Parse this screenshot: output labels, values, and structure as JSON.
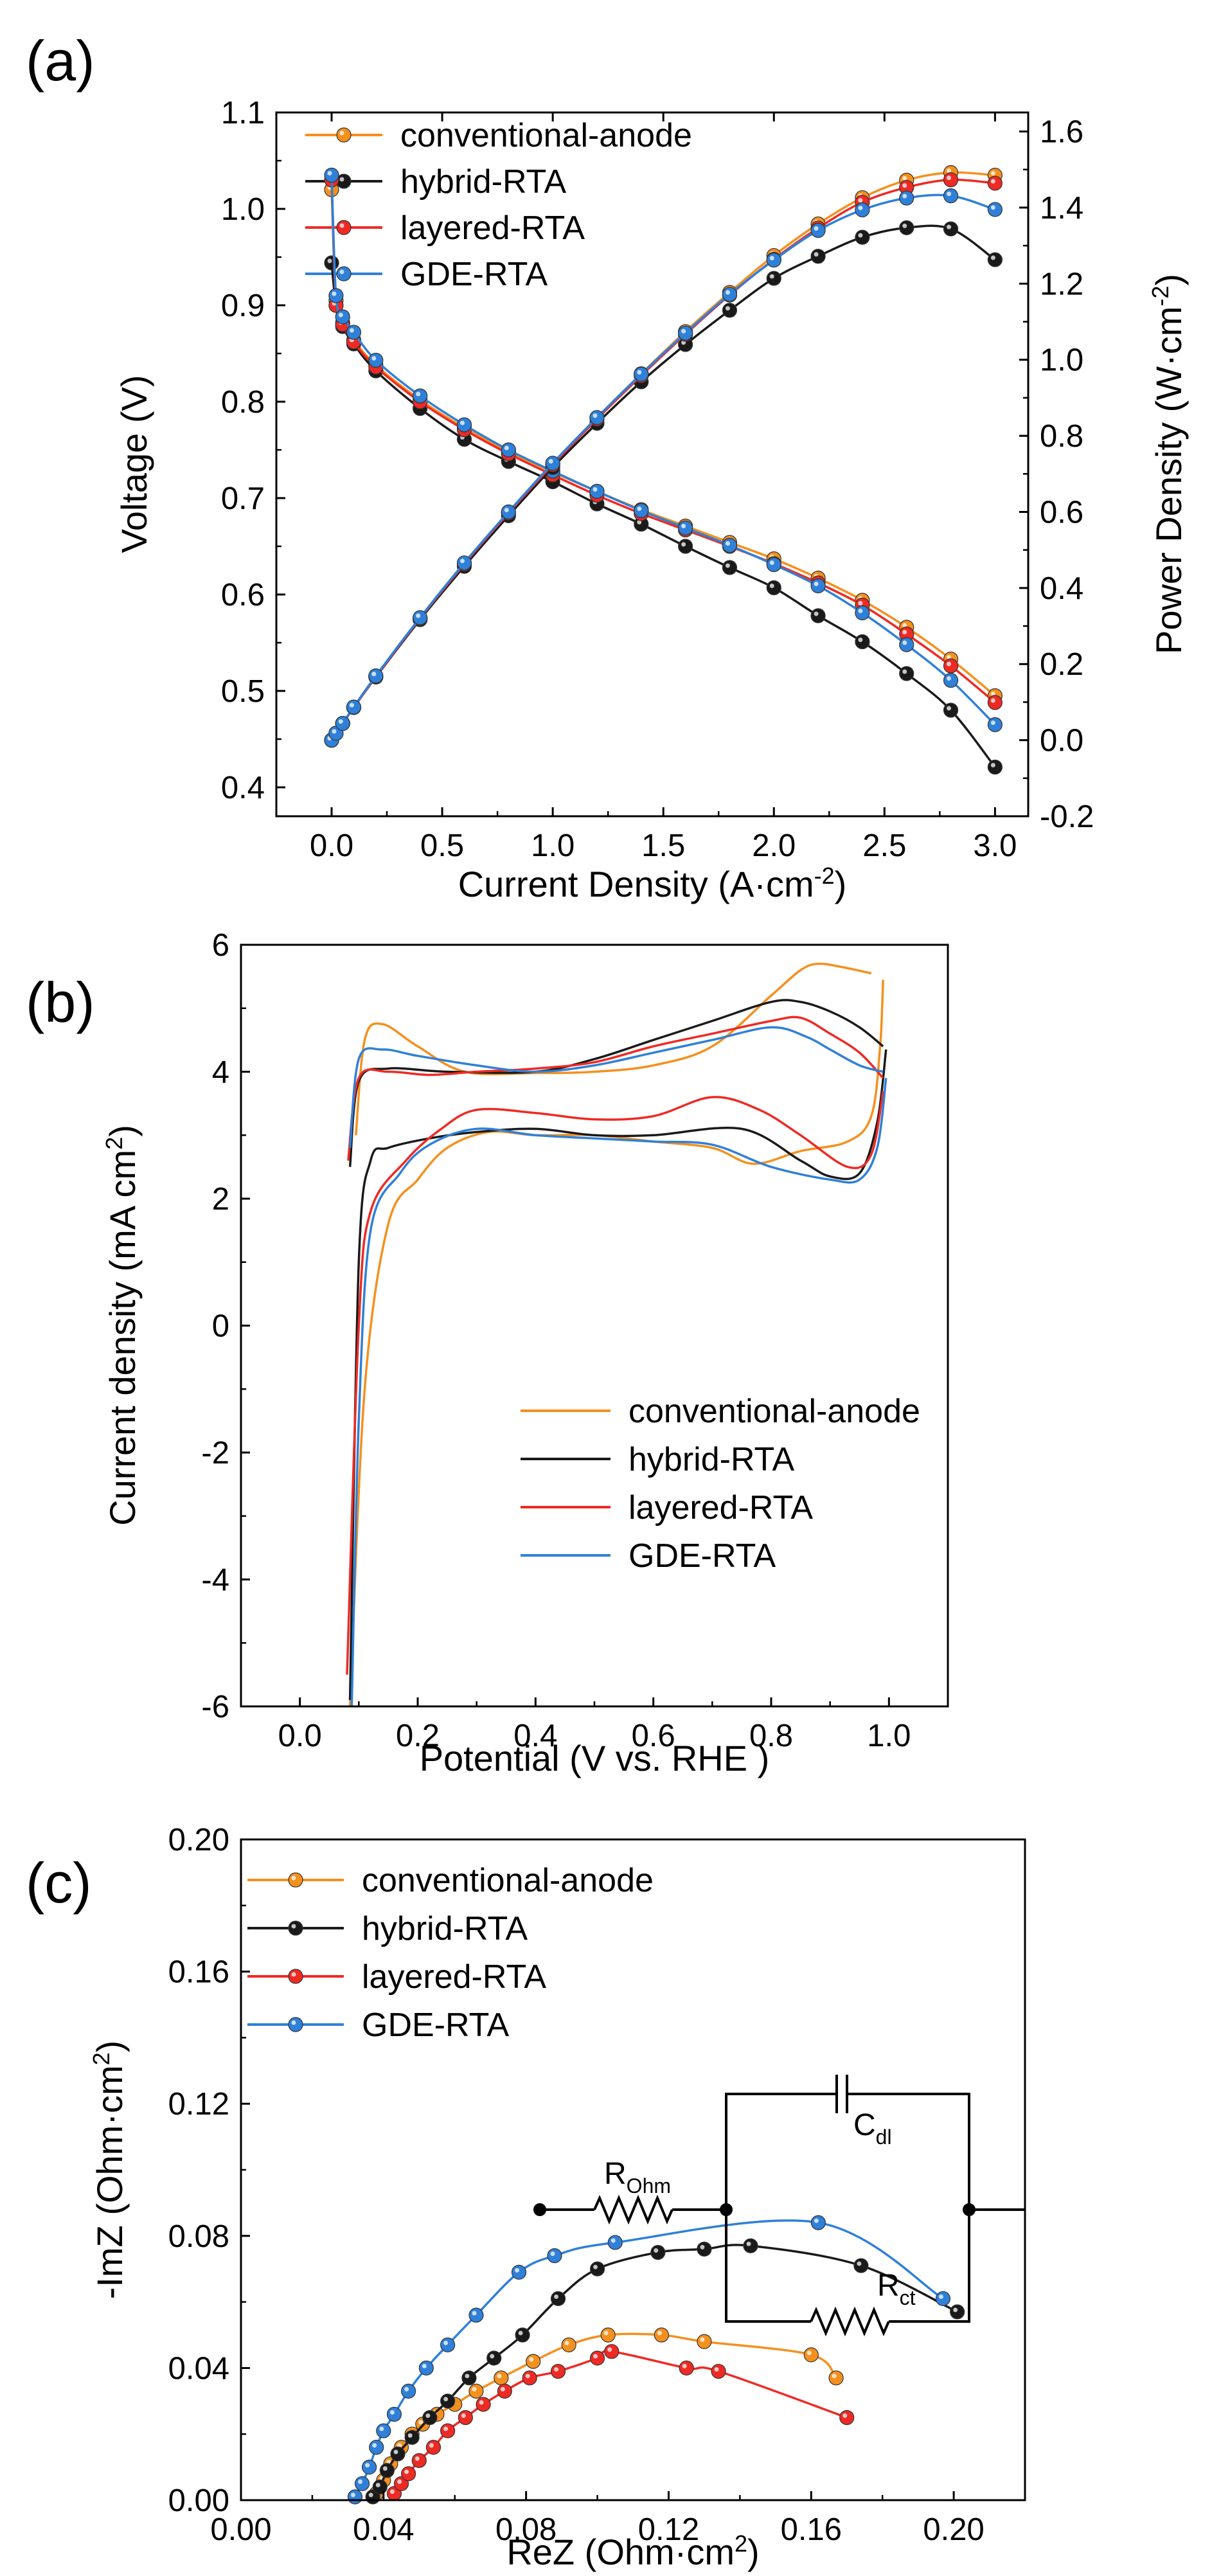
{
  "colors": {
    "conventional": "#f4901e",
    "hybrid": "#1a1a1a",
    "layered": "#ee2a24",
    "gde": "#2f80d8"
  },
  "chart_data": [
    {
      "panel": "(a)",
      "type": "line",
      "xlabel": "Current Density (A·cm⁻²)",
      "ylabel": "Voltage (V)",
      "y2label": "Power Density (W·cm⁻²)",
      "xlim": [
        -0.25,
        3.15
      ],
      "ylim": [
        0.37,
        1.1
      ],
      "y2lim": [
        -0.2,
        1.65
      ],
      "xticks": [
        "0.0",
        "0.5",
        "1.0",
        "1.5",
        "2.0",
        "2.5",
        "3.0"
      ],
      "yticks": [
        "0.4",
        "0.5",
        "0.6",
        "0.7",
        "0.8",
        "0.9",
        "1.0",
        "1.1"
      ],
      "y2ticks": [
        "-0.2",
        "0.0",
        "0.2",
        "0.4",
        "0.6",
        "0.8",
        "1.0",
        "1.2",
        "1.4",
        "1.6"
      ],
      "legend_position": "top-left",
      "x": [
        0,
        0.02,
        0.05,
        0.1,
        0.2,
        0.4,
        0.6,
        0.8,
        1.0,
        1.2,
        1.4,
        1.6,
        1.8,
        2.0,
        2.2,
        2.4,
        2.6,
        2.8,
        3.0
      ],
      "voltage_series": [
        {
          "name": "conventional-anode",
          "values": [
            1.02,
            0.905,
            0.882,
            0.864,
            0.838,
            0.802,
            0.773,
            0.748,
            0.727,
            0.707,
            0.688,
            0.671,
            0.654,
            0.637,
            0.617,
            0.594,
            0.566,
            0.533,
            0.495
          ]
        },
        {
          "name": "hybrid-RTA",
          "values": [
            0.944,
            0.9,
            0.878,
            0.86,
            0.832,
            0.793,
            0.761,
            0.738,
            0.717,
            0.694,
            0.673,
            0.65,
            0.628,
            0.607,
            0.578,
            0.551,
            0.518,
            0.48,
            0.421
          ]
        },
        {
          "name": "layered-RTA",
          "values": [
            1.03,
            0.9,
            0.88,
            0.862,
            0.836,
            0.8,
            0.771,
            0.746,
            0.724,
            0.703,
            0.684,
            0.667,
            0.65,
            0.632,
            0.612,
            0.589,
            0.559,
            0.526,
            0.488
          ]
        },
        {
          "name": "GDE-RTA",
          "values": [
            1.035,
            0.91,
            0.888,
            0.872,
            0.843,
            0.806,
            0.776,
            0.75,
            0.728,
            0.707,
            0.687,
            0.669,
            0.651,
            0.631,
            0.609,
            0.581,
            0.548,
            0.511,
            0.465
          ]
        }
      ],
      "power_series": [
        {
          "name": "conventional-anode",
          "values": [
            0,
            0.018,
            0.044,
            0.086,
            0.168,
            0.321,
            0.464,
            0.598,
            0.727,
            0.848,
            0.963,
            1.074,
            1.177,
            1.274,
            1.357,
            1.426,
            1.472,
            1.492,
            1.485
          ]
        },
        {
          "name": "hybrid-RTA",
          "values": [
            0,
            0.018,
            0.044,
            0.086,
            0.166,
            0.317,
            0.457,
            0.59,
            0.717,
            0.833,
            0.942,
            1.04,
            1.13,
            1.214,
            1.272,
            1.322,
            1.347,
            1.344,
            1.263
          ]
        },
        {
          "name": "layered-RTA",
          "values": [
            0,
            0.018,
            0.044,
            0.086,
            0.167,
            0.32,
            0.463,
            0.597,
            0.724,
            0.844,
            0.958,
            1.067,
            1.17,
            1.264,
            1.346,
            1.414,
            1.453,
            1.473,
            1.464
          ]
        },
        {
          "name": "GDE-RTA",
          "values": [
            0,
            0.018,
            0.044,
            0.087,
            0.169,
            0.322,
            0.466,
            0.6,
            0.728,
            0.848,
            0.962,
            1.07,
            1.172,
            1.262,
            1.34,
            1.394,
            1.425,
            1.431,
            1.395
          ]
        }
      ]
    },
    {
      "panel": "(b)",
      "type": "line",
      "xlabel": "Potential (V vs. RHE )",
      "ylabel": "Current density (mA cm²)",
      "xlim": [
        -0.1,
        1.1
      ],
      "ylim": [
        -6,
        6
      ],
      "xticks": [
        "0.0",
        "0.2",
        "0.4",
        "0.6",
        "0.8",
        "1.0"
      ],
      "yticks": [
        "-6",
        "-4",
        "-2",
        "0",
        "2",
        "4",
        "6"
      ],
      "legend_position": "bottom-right",
      "series": [
        {
          "name": "conventional-anode",
          "upper": [
            [
              0.095,
              3.0
            ],
            [
              0.11,
              4.5
            ],
            [
              0.14,
              4.75
            ],
            [
              0.2,
              4.4
            ],
            [
              0.28,
              4.0
            ],
            [
              0.4,
              3.98
            ],
            [
              0.5,
              4.0
            ],
            [
              0.6,
              4.1
            ],
            [
              0.7,
              4.4
            ],
            [
              0.8,
              5.2
            ],
            [
              0.85,
              5.6
            ],
            [
              0.88,
              5.7
            ],
            [
              0.92,
              5.65
            ],
            [
              0.97,
              5.55
            ]
          ],
          "lower": [
            [
              0.99,
              5.45
            ],
            [
              0.985,
              4.4
            ],
            [
              0.97,
              3.3
            ],
            [
              0.93,
              2.9
            ],
            [
              0.85,
              2.75
            ],
            [
              0.77,
              2.55
            ],
            [
              0.7,
              2.8
            ],
            [
              0.6,
              2.9
            ],
            [
              0.5,
              3.0
            ],
            [
              0.4,
              3.0
            ],
            [
              0.32,
              3.05
            ],
            [
              0.25,
              2.8
            ],
            [
              0.2,
              2.3
            ],
            [
              0.15,
              1.6
            ],
            [
              0.11,
              -1.0
            ],
            [
              0.085,
              -6.0
            ]
          ]
        },
        {
          "name": "hybrid-RTA",
          "upper": [
            [
              0.085,
              2.5
            ],
            [
              0.1,
              3.85
            ],
            [
              0.15,
              4.05
            ],
            [
              0.25,
              4.0
            ],
            [
              0.4,
              4.0
            ],
            [
              0.5,
              4.2
            ],
            [
              0.6,
              4.5
            ],
            [
              0.7,
              4.8
            ],
            [
              0.8,
              5.1
            ],
            [
              0.85,
              5.1
            ],
            [
              0.9,
              4.95
            ],
            [
              0.95,
              4.7
            ],
            [
              0.99,
              4.4
            ]
          ],
          "lower": [
            [
              0.995,
              4.35
            ],
            [
              0.98,
              3.2
            ],
            [
              0.95,
              2.4
            ],
            [
              0.9,
              2.35
            ],
            [
              0.85,
              2.6
            ],
            [
              0.75,
              3.1
            ],
            [
              0.6,
              3.0
            ],
            [
              0.5,
              3.0
            ],
            [
              0.4,
              3.1
            ],
            [
              0.3,
              3.05
            ],
            [
              0.22,
              2.95
            ],
            [
              0.15,
              2.8
            ],
            [
              0.12,
              2.6
            ],
            [
              0.1,
              1.0
            ],
            [
              0.085,
              -5.9
            ]
          ]
        },
        {
          "name": "layered-RTA",
          "upper": [
            [
              0.082,
              2.6
            ],
            [
              0.1,
              3.9
            ],
            [
              0.15,
              4.0
            ],
            [
              0.22,
              3.95
            ],
            [
              0.3,
              4.0
            ],
            [
              0.4,
              4.05
            ],
            [
              0.5,
              4.15
            ],
            [
              0.6,
              4.4
            ],
            [
              0.7,
              4.6
            ],
            [
              0.8,
              4.8
            ],
            [
              0.85,
              4.85
            ],
            [
              0.9,
              4.6
            ],
            [
              0.95,
              4.3
            ],
            [
              0.99,
              3.9
            ]
          ],
          "lower": [
            [
              0.99,
              3.7
            ],
            [
              0.97,
              2.7
            ],
            [
              0.93,
              2.5
            ],
            [
              0.85,
              3.0
            ],
            [
              0.78,
              3.4
            ],
            [
              0.7,
              3.6
            ],
            [
              0.6,
              3.3
            ],
            [
              0.5,
              3.25
            ],
            [
              0.4,
              3.35
            ],
            [
              0.3,
              3.4
            ],
            [
              0.24,
              3.1
            ],
            [
              0.18,
              2.6
            ],
            [
              0.12,
              1.8
            ],
            [
              0.1,
              0.0
            ],
            [
              0.08,
              -5.5
            ]
          ]
        },
        {
          "name": "GDE-RTA",
          "upper": [
            [
              0.085,
              2.8
            ],
            [
              0.1,
              4.2
            ],
            [
              0.14,
              4.35
            ],
            [
              0.2,
              4.25
            ],
            [
              0.3,
              4.1
            ],
            [
              0.4,
              4.0
            ],
            [
              0.5,
              4.1
            ],
            [
              0.6,
              4.3
            ],
            [
              0.7,
              4.5
            ],
            [
              0.8,
              4.7
            ],
            [
              0.86,
              4.55
            ],
            [
              0.9,
              4.35
            ],
            [
              0.95,
              4.1
            ],
            [
              0.99,
              4.0
            ]
          ],
          "lower": [
            [
              0.995,
              3.9
            ],
            [
              0.98,
              2.8
            ],
            [
              0.95,
              2.3
            ],
            [
              0.9,
              2.3
            ],
            [
              0.8,
              2.5
            ],
            [
              0.7,
              2.85
            ],
            [
              0.6,
              2.9
            ],
            [
              0.5,
              2.95
            ],
            [
              0.4,
              3.0
            ],
            [
              0.3,
              3.1
            ],
            [
              0.22,
              2.85
            ],
            [
              0.17,
              2.4
            ],
            [
              0.12,
              1.5
            ],
            [
              0.1,
              -1.5
            ],
            [
              0.088,
              -6.0
            ]
          ]
        }
      ]
    },
    {
      "panel": "(c)",
      "type": "scatter",
      "xlabel": "ReZ  (Ohm·cm²)",
      "ylabel": "-ImZ  (Ohm·cm²)",
      "xlim": [
        0,
        0.22
      ],
      "ylim": [
        0,
        0.2
      ],
      "xticks": [
        "0.00",
        "0.04",
        "0.08",
        "0.12",
        "0.16",
        "0.20"
      ],
      "yticks": [
        "0.00",
        "0.04",
        "0.08",
        "0.12",
        "0.16",
        "0.20"
      ],
      "legend_position": "top-left",
      "circuit": {
        "r_ohm": "R",
        "r_ohm_sub": "Ohm",
        "c_dl": "C",
        "c_dl_sub": "dl",
        "r_ct": "R",
        "r_ct_sub": "ct"
      },
      "series": [
        {
          "name": "conventional-anode",
          "x": [
            0.038,
            0.04,
            0.042,
            0.045,
            0.048,
            0.051,
            0.055,
            0.06,
            0.066,
            0.073,
            0.082,
            0.092,
            0.103,
            0.118,
            0.13,
            0.16,
            0.167
          ],
          "y": [
            0.002,
            0.006,
            0.011,
            0.016,
            0.02,
            0.023,
            0.026,
            0.029,
            0.033,
            0.037,
            0.042,
            0.047,
            0.05,
            0.05,
            0.048,
            0.044,
            0.037
          ]
        },
        {
          "name": "hybrid-RTA",
          "x": [
            0.037,
            0.039,
            0.041,
            0.044,
            0.048,
            0.053,
            0.058,
            0.064,
            0.071,
            0.079,
            0.089,
            0.1,
            0.117,
            0.13,
            0.143,
            0.174,
            0.201
          ],
          "y": [
            0.001,
            0.004,
            0.009,
            0.014,
            0.019,
            0.025,
            0.03,
            0.037,
            0.043,
            0.05,
            0.061,
            0.07,
            0.075,
            0.076,
            0.077,
            0.071,
            0.057
          ]
        },
        {
          "name": "layered-RTA",
          "x": [
            0.043,
            0.045,
            0.047,
            0.05,
            0.054,
            0.058,
            0.063,
            0.068,
            0.074,
            0.081,
            0.089,
            0.1,
            0.104,
            0.125,
            0.134,
            0.17
          ],
          "y": [
            0.002,
            0.005,
            0.008,
            0.012,
            0.016,
            0.021,
            0.025,
            0.029,
            0.033,
            0.037,
            0.039,
            0.043,
            0.045,
            0.04,
            0.039,
            0.025
          ]
        },
        {
          "name": "GDE-RTA",
          "x": [
            0.032,
            0.034,
            0.036,
            0.038,
            0.04,
            0.043,
            0.047,
            0.052,
            0.058,
            0.066,
            0.078,
            0.088,
            0.105,
            0.162,
            0.197
          ],
          "y": [
            0.001,
            0.005,
            0.01,
            0.016,
            0.021,
            0.026,
            0.033,
            0.04,
            0.047,
            0.056,
            0.069,
            0.074,
            0.078,
            0.084,
            0.061
          ]
        }
      ]
    }
  ]
}
